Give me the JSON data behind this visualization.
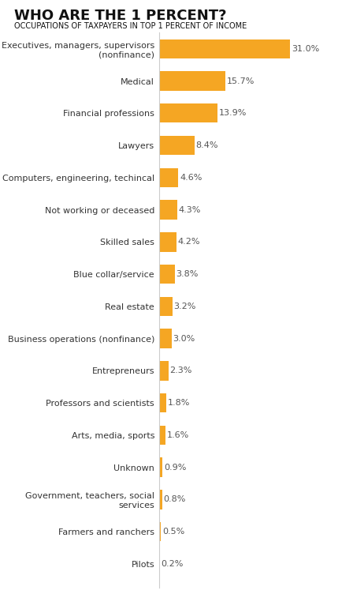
{
  "title": "WHO ARE THE 1 PERCENT?",
  "subtitle": "OCCUPATIONS OF TAXPAYERS IN TOP 1 PERCENT OF INCOME",
  "categories": [
    "Executives, managers, supervisors\n(nonfinance)",
    "Medical",
    "Financial professions",
    "Lawyers",
    "Computers, engineering, techincal",
    "Not working or deceased",
    "Skilled sales",
    "Blue collar/service",
    "Real estate",
    "Business operations (nonfinance)",
    "Entrepreneurs",
    "Professors and scientists",
    "Arts, media, sports",
    "Unknown",
    "Government, teachers, social\nservices",
    "Farmers and ranchers",
    "Pilots"
  ],
  "values": [
    31.0,
    15.7,
    13.9,
    8.4,
    4.6,
    4.3,
    4.2,
    3.8,
    3.2,
    3.0,
    2.3,
    1.8,
    1.6,
    0.9,
    0.8,
    0.5,
    0.2
  ],
  "labels": [
    "31.0%",
    "15.7%",
    "13.9%",
    "8.4%",
    "4.6%",
    "4.3%",
    "4.2%",
    "3.8%",
    "3.2%",
    "3.0%",
    "2.3%",
    "1.8%",
    "1.6%",
    "0.9%",
    "0.8%",
    "0.5%",
    "0.2%"
  ],
  "bar_color": "#F5A623",
  "background_color": "#FFFFFF",
  "title_color": "#111111",
  "subtitle_color": "#111111",
  "label_color": "#333333",
  "value_color": "#555555",
  "xlim": [
    0,
    35
  ],
  "title_fontsize": 13,
  "subtitle_fontsize": 7,
  "label_fontsize": 8,
  "value_fontsize": 8
}
